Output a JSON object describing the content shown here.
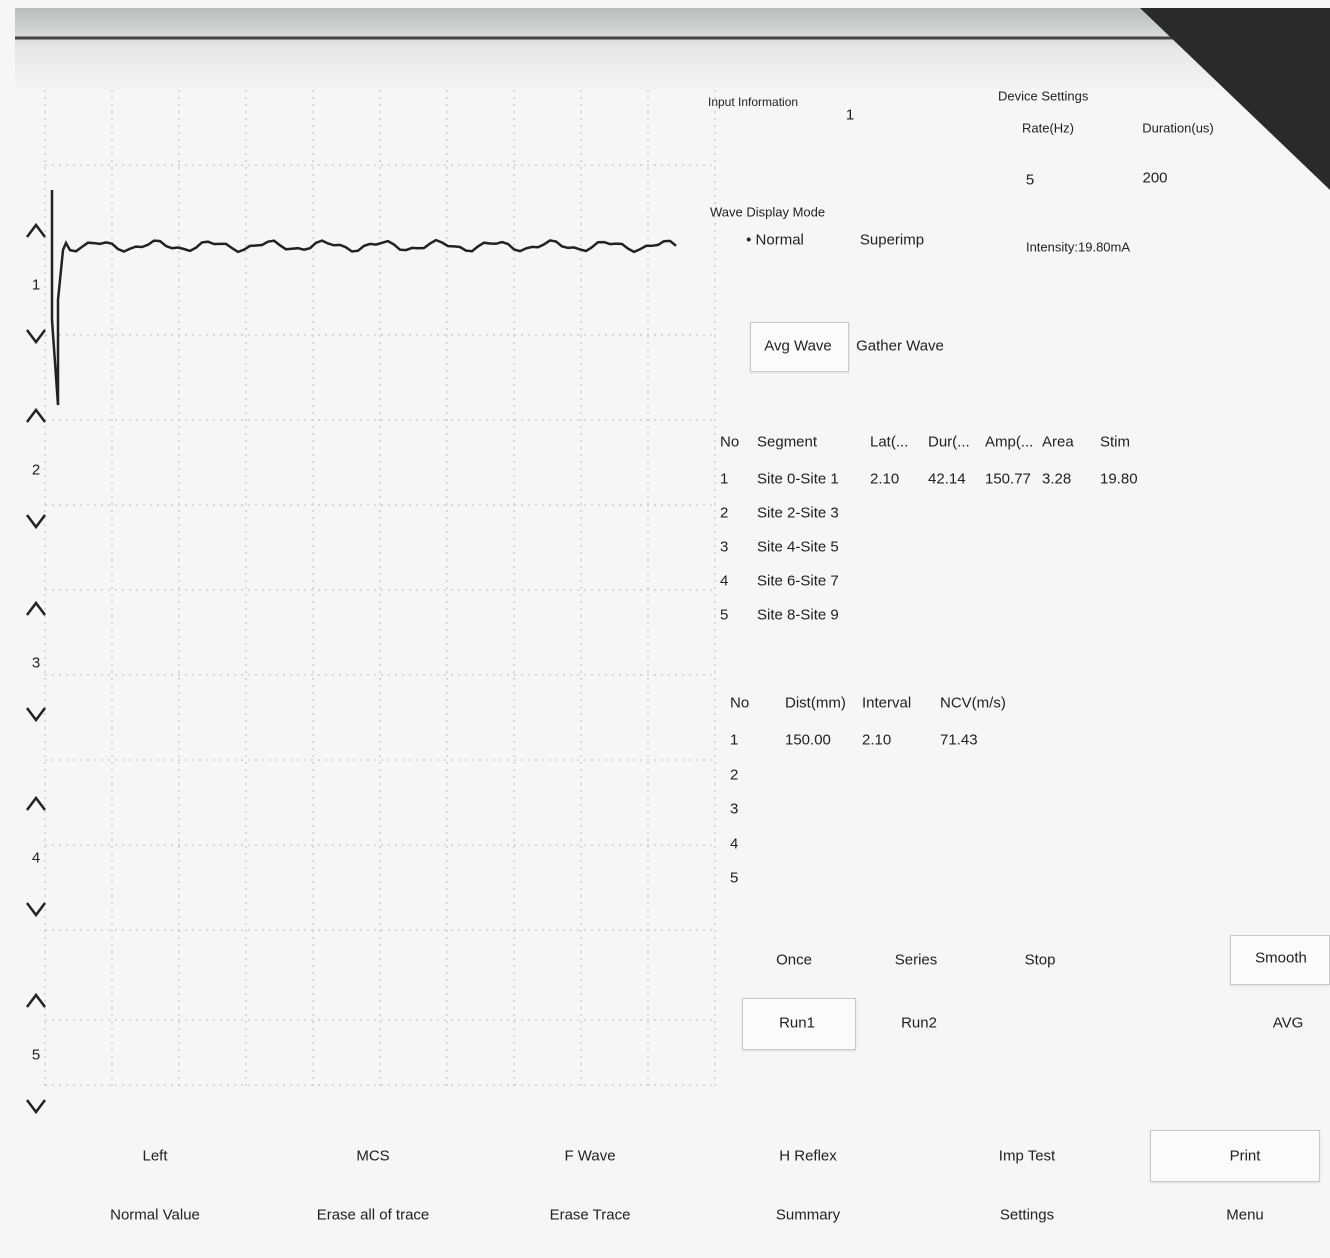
{
  "channels": [
    "1",
    "2",
    "3",
    "4",
    "5"
  ],
  "input_information": {
    "label": "Input Information",
    "value": "1"
  },
  "device_settings": {
    "title": "Device Settings",
    "rate_label": "Rate(Hz)",
    "duration_label": "Duration(us)",
    "rate": "5",
    "duration": "200",
    "intensity": "Intensity:19.80mA"
  },
  "wave_display_mode": {
    "title": "Wave Display Mode",
    "options": [
      "• Normal",
      "Superimp"
    ]
  },
  "wave_buttons": [
    "Avg Wave",
    "Gather Wave"
  ],
  "segment_table": {
    "headers": [
      "No",
      "Segment",
      "Lat(...",
      "Dur(...",
      "Amp(...",
      "Area",
      "Stim"
    ],
    "rows": [
      [
        "1",
        "Site 0-Site 1",
        "2.10",
        "42.14",
        "150.77",
        "3.28",
        "19.80"
      ],
      [
        "2",
        "Site 2-Site 3"
      ],
      [
        "3",
        "Site 4-Site 5"
      ],
      [
        "4",
        "Site 6-Site 7"
      ],
      [
        "5",
        "Site 8-Site 9"
      ]
    ]
  },
  "ncv_table": {
    "headers": [
      "No",
      "Dist(mm)",
      "Interval",
      "NCV(m/s)"
    ],
    "rows": [
      [
        "1",
        "150.00",
        "2.10",
        "71.43"
      ],
      [
        "2"
      ],
      [
        "3"
      ],
      [
        "4"
      ],
      [
        "5"
      ]
    ]
  },
  "run_controls": [
    "Once",
    "Series",
    "Stop",
    "Smooth",
    "Run1",
    "Run2",
    "AVG"
  ],
  "bottom_menu": [
    [
      "Left",
      "MCS",
      "F Wave",
      "H Reflex",
      "Imp Test",
      "Print"
    ],
    [
      "Normal Value",
      "Erase all of trace",
      "Erase Trace",
      "Summary",
      "Settings",
      "Menu"
    ]
  ]
}
